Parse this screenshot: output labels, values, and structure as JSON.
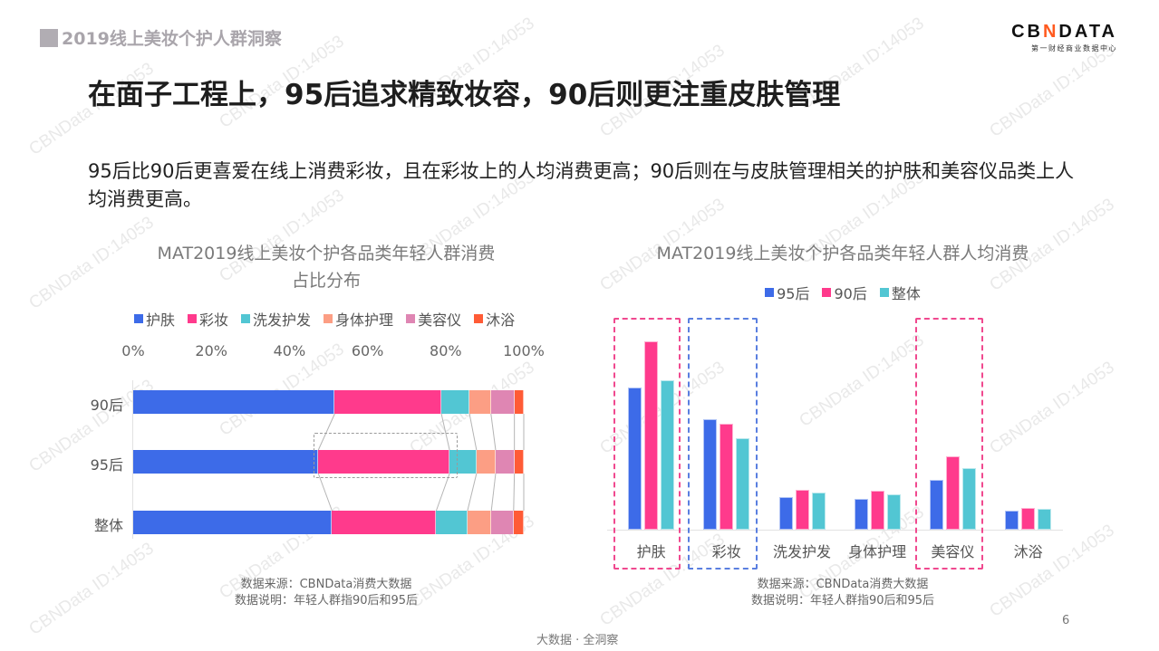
{
  "header": {
    "section_title": "2019线上美妆个护人群洞察",
    "logo": {
      "text_before": "CB",
      "text_accent": "N",
      "text_after": "DATA",
      "subtitle": "第一财经商业数据中心"
    }
  },
  "headline": "在面子工程上，95后追求精致妆容，90后则更注重皮肤管理",
  "summary": "95后比90后更喜爱在线上消费彩妆，且在彩妆上的人均消费更高；90后则在与皮肤管理相关的护肤和美容仪品类上人均消费更高。",
  "watermark": "CBNData ID:14053",
  "colors": {
    "skincare": "#3d6be8",
    "makeup": "#ff3a8c",
    "haircare": "#52c6d3",
    "bodycare": "#fc9e84",
    "beauty_device": "#df86b3",
    "bath": "#ff5b36",
    "gen95": "#3d6be8",
    "gen90": "#ff3a8c",
    "overall": "#52c6d3",
    "highlight_pink": "#f0498f",
    "highlight_blue": "#5a7fe0"
  },
  "left_chart": {
    "title_line1": "MAT2019线上美妆个护各品类年轻人群消费",
    "title_line2": "占比分布",
    "note_source": "数据来源：CBNData消费大数据",
    "note_desc": "数据说明：年轻人群指90后和95后"
  },
  "right_chart": {
    "title": "MAT2019线上美妆个护各品类年轻人群人均消费",
    "note_source": "数据来源：CBNData消费大数据",
    "note_desc": "数据说明：年轻人群指90后和95后"
  },
  "chart_data": [
    {
      "type": "bar",
      "orientation": "horizontal",
      "stacked": true,
      "title": "MAT2019线上美妆个护各品类年轻人群消费占比分布",
      "categories": [
        "90后",
        "95后",
        "整体"
      ],
      "series": [
        {
          "name": "护肤",
          "values": [
            51.6,
            47.4,
            50.9
          ]
        },
        {
          "name": "彩妆",
          "values": [
            27.3,
            33.6,
            26.7
          ]
        },
        {
          "name": "洗发护发",
          "values": [
            7.2,
            6.9,
            8.0
          ]
        },
        {
          "name": "身体护理",
          "values": [
            5.5,
            4.9,
            6.1
          ]
        },
        {
          "name": "美容仪",
          "values": [
            6.0,
            4.8,
            5.7
          ]
        },
        {
          "name": "沐浴",
          "values": [
            2.4,
            2.4,
            2.6
          ]
        }
      ],
      "xticks": [
        "0%",
        "20%",
        "40%",
        "60%",
        "80%",
        "100%"
      ],
      "xlim": [
        0,
        100
      ],
      "xlabel": "",
      "ylabel": "",
      "legend_position": "top",
      "grid": false,
      "annotations": [
        "dashed box highlighting 95后 彩妆 segment"
      ]
    },
    {
      "type": "bar",
      "orientation": "vertical",
      "stacked": false,
      "title": "MAT2019线上美妆个护各品类年轻人群人均消费",
      "categories": [
        "护肤",
        "彩妆",
        "洗发护发",
        "身体护理",
        "美容仪",
        "沐浴"
      ],
      "series": [
        {
          "name": "95后",
          "values": [
            157,
            122,
            36,
            34,
            55,
            21
          ]
        },
        {
          "name": "90后",
          "values": [
            208,
            117,
            44,
            43,
            81,
            24
          ]
        },
        {
          "name": "整体",
          "values": [
            165,
            101,
            41,
            39,
            68,
            23
          ]
        }
      ],
      "value_unit": "relative bar height (no y-axis shown)",
      "ylim": [
        0,
        220
      ],
      "xlabel": "",
      "ylabel": "",
      "legend_position": "top",
      "grid": false,
      "annotations": [
        "pink dashed box around 护肤",
        "blue dashed box around 彩妆",
        "pink dashed box around 美容仪"
      ]
    }
  ],
  "footer": {
    "slogan": "大数据 · 全洞察",
    "page_number": "6"
  }
}
